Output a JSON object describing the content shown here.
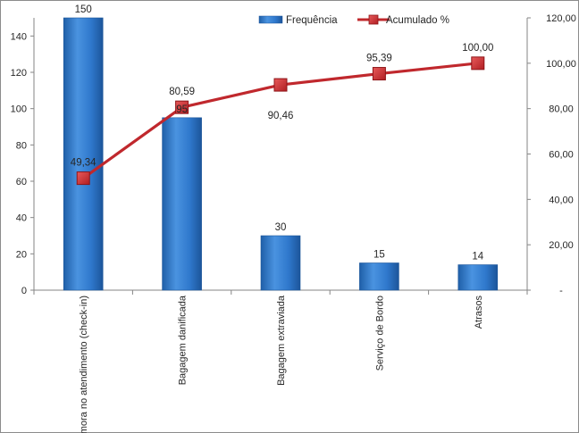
{
  "chart_data": {
    "type": "bar",
    "categories": [
      "Demora no atendimento (check-in)",
      "Bagagem danificada",
      "Bagagem extraviada",
      "Serviço de Bordo",
      "Atrasos"
    ],
    "series": [
      {
        "name": "Frequência",
        "type": "bar",
        "axis": "left",
        "values": [
          150,
          95,
          30,
          15,
          14
        ],
        "labels": [
          "150",
          "95",
          "30",
          "15",
          "14"
        ],
        "color": "#2e75c8"
      },
      {
        "name": "Acumulado %",
        "type": "line",
        "axis": "right",
        "values": [
          49.34,
          80.59,
          90.46,
          95.39,
          100.0
        ],
        "labels": [
          "49,34",
          "80,59",
          "90,46",
          "95,39",
          "100,00"
        ],
        "color": "#c0282d"
      }
    ],
    "y_left": {
      "min": 0,
      "max": 150,
      "ticks": [
        "0",
        "20",
        "40",
        "60",
        "80",
        "100",
        "120",
        "140"
      ]
    },
    "y_right": {
      "min": 0,
      "max": 120,
      "ticks": [
        "-",
        "20,00",
        "40,00",
        "60,00",
        "80,00",
        "100,00",
        "120,00"
      ]
    },
    "legend_position": "top-right",
    "grid": false,
    "title": "",
    "xlabel": "",
    "ylabel": ""
  }
}
